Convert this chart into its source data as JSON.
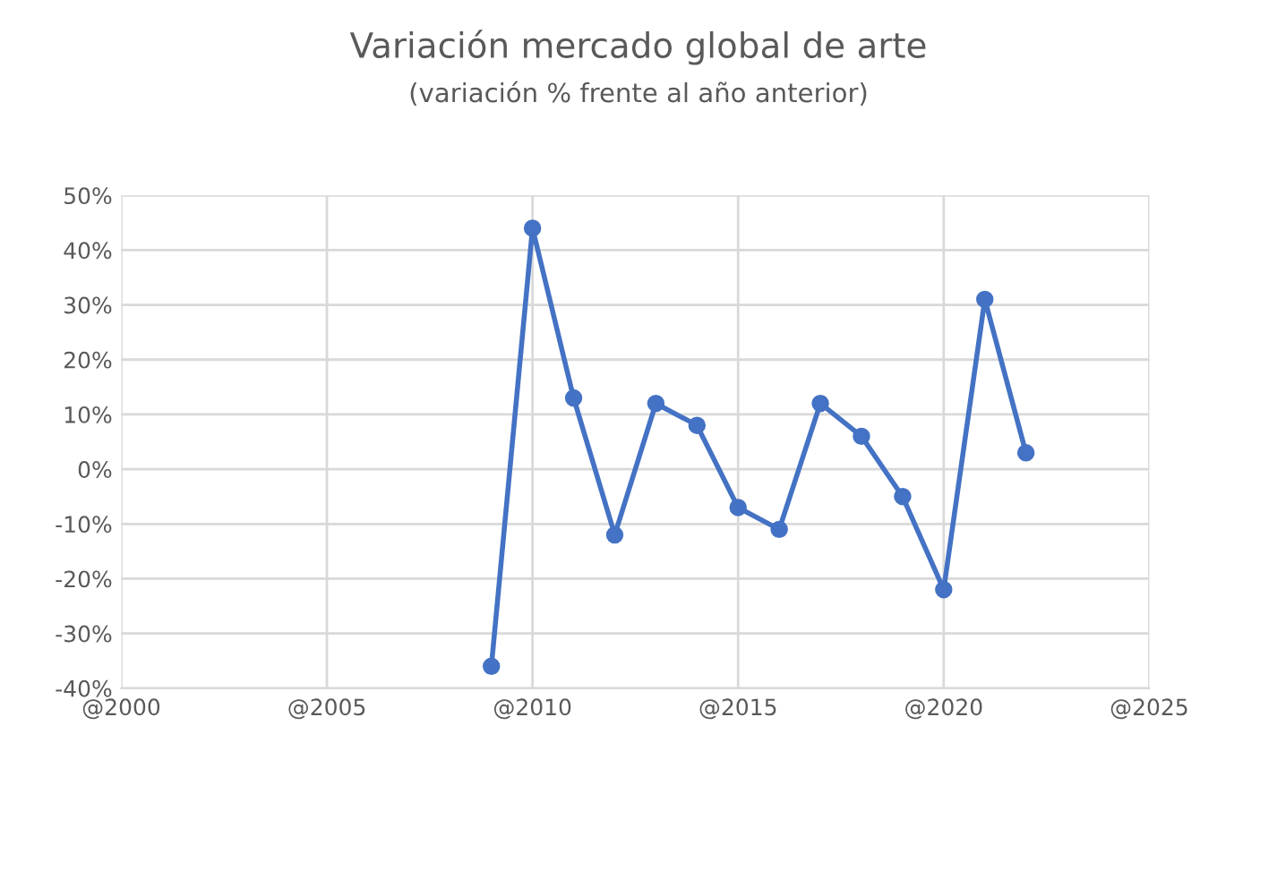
{
  "chart_data": {
    "type": "line",
    "title": "Variación mercado global de arte",
    "subtitle": "(variación % frente al año anterior)",
    "x": [
      2009,
      2010,
      2011,
      2012,
      2013,
      2014,
      2015,
      2016,
      2017,
      2018,
      2019,
      2020,
      2021,
      2022
    ],
    "series": [
      {
        "color": "#4472c4",
        "values": [
          -36,
          44,
          13,
          -12,
          12,
          8,
          -7,
          -11,
          12,
          6,
          -5,
          -22,
          31,
          3
        ]
      }
    ],
    "xlim": [
      2000,
      2025
    ],
    "xticks": [
      {
        "value": 2000,
        "label": "@2000"
      },
      {
        "value": 2005,
        "label": "@2005"
      },
      {
        "value": 2010,
        "label": "@2010"
      },
      {
        "value": 2015,
        "label": "@2015"
      },
      {
        "value": 2020,
        "label": "@2020"
      },
      {
        "value": 2025,
        "label": "@2025"
      }
    ],
    "ylim": [
      -40,
      50
    ],
    "yticks": [
      {
        "value": -40,
        "label": "-40%"
      },
      {
        "value": -30,
        "label": "-30%"
      },
      {
        "value": -20,
        "label": "-20%"
      },
      {
        "value": -10,
        "label": "-10%"
      },
      {
        "value": 0,
        "label": "0%"
      },
      {
        "value": 10,
        "label": "10%"
      },
      {
        "value": 20,
        "label": "20%"
      },
      {
        "value": 30,
        "label": "30%"
      },
      {
        "value": 40,
        "label": "40%"
      },
      {
        "value": 50,
        "label": "50%"
      }
    ],
    "grid": true,
    "marker": "circle",
    "line_style": "solid",
    "legend": false
  }
}
